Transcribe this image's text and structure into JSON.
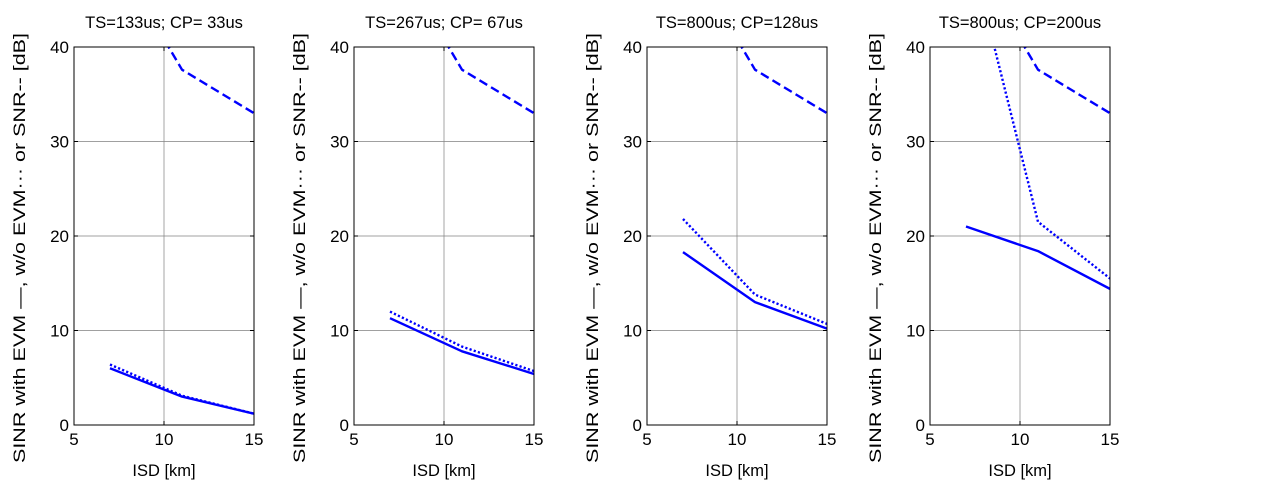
{
  "style": {
    "series_color": "#0000FF",
    "grid_color": "#808080",
    "axis_color": "#000000"
  },
  "chart_data": [
    {
      "type": "line",
      "title": "TS=133us; CP= 33us",
      "xlabel": "ISD [km]",
      "ylabel": "SINR with EVM —, w/o EVM··· or SNR-- [dB]",
      "xlim": [
        5,
        15
      ],
      "ylim": [
        0,
        40
      ],
      "xticks": [
        5,
        10,
        15
      ],
      "yticks": [
        0,
        10,
        20,
        30,
        40
      ],
      "grid": true,
      "series": [
        {
          "style": "solid",
          "x": [
            7,
            11,
            15
          ],
          "y": [
            6.0,
            3.0,
            1.2
          ]
        },
        {
          "style": "dotted",
          "x": [
            7,
            11,
            15
          ],
          "y": [
            6.4,
            3.1,
            1.2
          ]
        },
        {
          "style": "dashed",
          "x": [
            7,
            11,
            15
          ],
          "y": [
            50.5,
            37.6,
            33.0
          ]
        }
      ]
    },
    {
      "type": "line",
      "title": "TS=267us; CP= 67us",
      "xlabel": "ISD [km]",
      "ylabel": "SINR with EVM —, w/o EVM··· or SNR-- [dB]",
      "xlim": [
        5,
        15
      ],
      "ylim": [
        0,
        40
      ],
      "xticks": [
        5,
        10,
        15
      ],
      "yticks": [
        0,
        10,
        20,
        30,
        40
      ],
      "grid": true,
      "series": [
        {
          "style": "solid",
          "x": [
            7,
            11,
            15
          ],
          "y": [
            11.3,
            7.8,
            5.4
          ]
        },
        {
          "style": "dotted",
          "x": [
            7,
            11,
            15
          ],
          "y": [
            12.0,
            8.3,
            5.7
          ]
        },
        {
          "style": "dashed",
          "x": [
            7,
            11,
            15
          ],
          "y": [
            50.5,
            37.6,
            33.0
          ]
        }
      ]
    },
    {
      "type": "line",
      "title": "TS=800us; CP=128us",
      "xlabel": "ISD [km]",
      "ylabel": "SINR with EVM —, w/o EVM··· or SNR-- [dB]",
      "xlim": [
        5,
        15
      ],
      "ylim": [
        0,
        40
      ],
      "xticks": [
        5,
        10,
        15
      ],
      "yticks": [
        0,
        10,
        20,
        30,
        40
      ],
      "grid": true,
      "series": [
        {
          "style": "solid",
          "x": [
            7,
            11,
            15
          ],
          "y": [
            18.3,
            13.0,
            10.2
          ]
        },
        {
          "style": "dotted",
          "x": [
            7,
            11,
            15
          ],
          "y": [
            21.8,
            13.8,
            10.7
          ]
        },
        {
          "style": "dashed",
          "x": [
            7,
            11,
            15
          ],
          "y": [
            50.5,
            37.6,
            33.0
          ]
        }
      ]
    },
    {
      "type": "line",
      "title": "TS=800us; CP=200us",
      "xlabel": "ISD [km]",
      "ylabel": "SINR with EVM —, w/o EVM··· or SNR-- [dB]",
      "xlim": [
        5,
        15
      ],
      "ylim": [
        0,
        40
      ],
      "xticks": [
        5,
        10,
        15
      ],
      "yticks": [
        0,
        10,
        20,
        30,
        40
      ],
      "grid": true,
      "series": [
        {
          "style": "solid",
          "x": [
            7,
            11,
            15
          ],
          "y": [
            21.0,
            18.4,
            14.4
          ]
        },
        {
          "style": "dotted",
          "x": [
            7,
            11,
            15
          ],
          "y": [
            52.0,
            21.5,
            15.5
          ]
        },
        {
          "style": "dashed",
          "x": [
            7,
            11,
            15
          ],
          "y": [
            50.5,
            37.6,
            33.0
          ]
        }
      ]
    }
  ]
}
